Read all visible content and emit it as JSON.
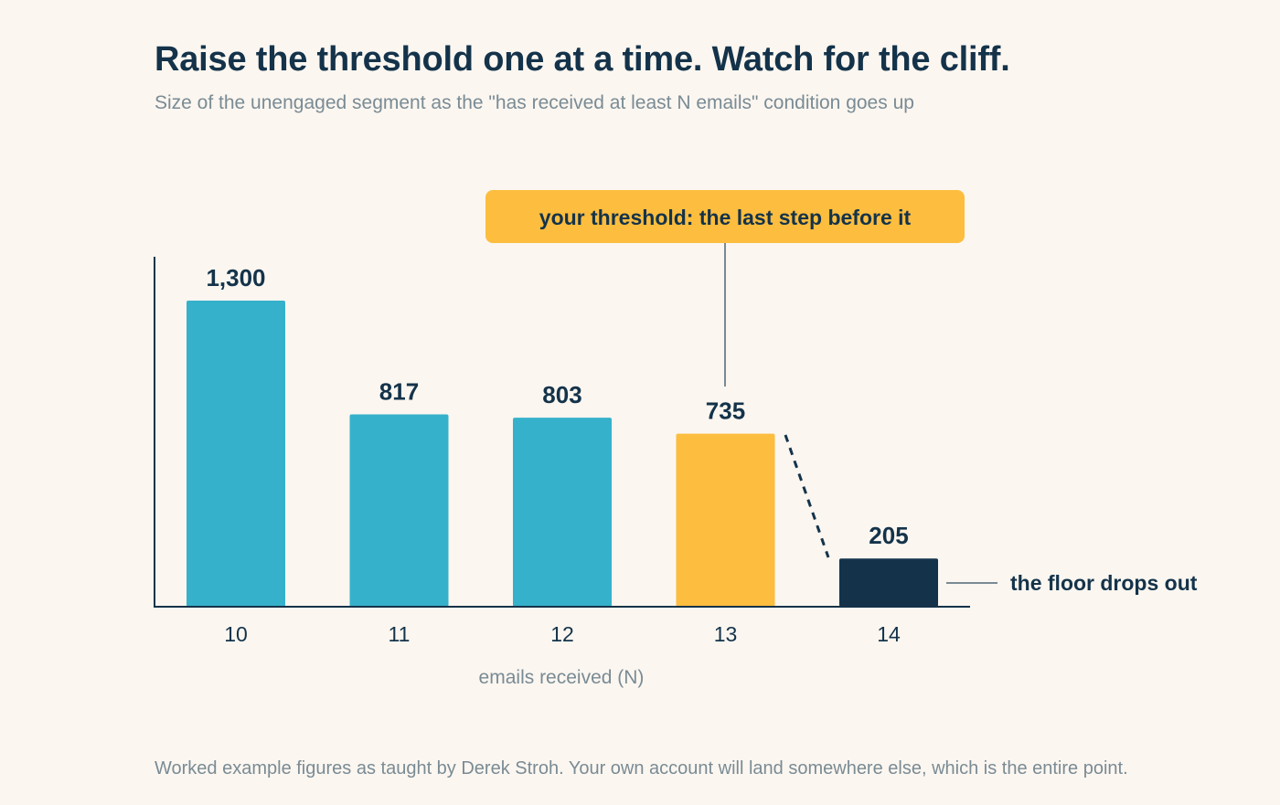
{
  "title": "Raise the threshold one at a time. Watch for the cliff.",
  "subtitle": "Size of the unengaged segment as the \"has received at least N emails\" condition goes up",
  "footer": "Worked example figures as taught by Derek Stroh. Your own account will land somewhere else, which is the entire point.",
  "chart_data": {
    "type": "bar",
    "title": "Raise the threshold one at a time. Watch for the cliff.",
    "subtitle": "Size of the unengaged segment as the \"has received at least N emails\" condition goes up",
    "xlabel": "emails received (N)",
    "ylabel": "",
    "categories": [
      "10",
      "11",
      "12",
      "13",
      "14"
    ],
    "values": [
      1300,
      817,
      803,
      735,
      205
    ],
    "value_labels": [
      "1,300",
      "817",
      "803",
      "735",
      "205"
    ],
    "ylim": [
      0,
      1300
    ],
    "grid": false,
    "bar_roles": [
      "normal",
      "normal",
      "normal",
      "threshold",
      "cliff"
    ],
    "annotations": {
      "threshold": "your threshold: the last step before it",
      "cliff": "the floor drops out"
    },
    "colors": {
      "normal": "#36b1cc",
      "threshold": "#fdbd3e",
      "cliff": "#14334a",
      "callout_bg": "#fdbd3e",
      "text": "#14334a",
      "muted": "#7a8b94",
      "background": "#fbf6f0"
    }
  }
}
